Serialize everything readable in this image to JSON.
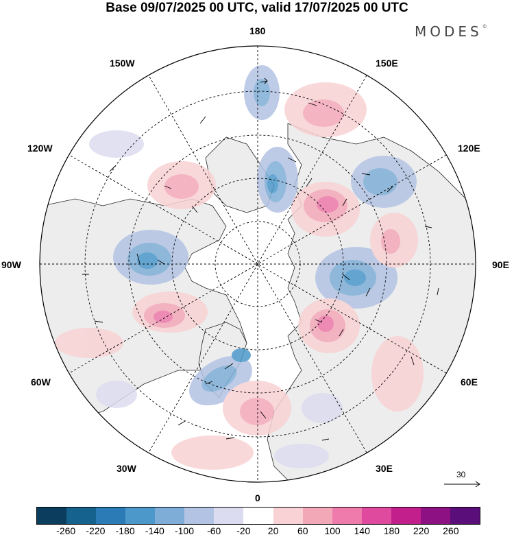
{
  "title": "Base 09/07/2025 00 UTC, valid 17/07/2025 00 UTC",
  "brand": "MODES",
  "brand_mark": "©",
  "longitude_labels": [
    "180",
    "150E",
    "120E",
    "90E",
    "60E",
    "30E",
    "0",
    "30W",
    "60W",
    "90W",
    "120W",
    "150W"
  ],
  "reference_vector": {
    "label": "30"
  },
  "colorbar": {
    "ticks": [
      "-260",
      "-220",
      "-180",
      "-140",
      "-100",
      "-60",
      "-20",
      "20",
      "60",
      "100",
      "140",
      "180",
      "220",
      "260"
    ],
    "colors": [
      "#0b3d5e",
      "#16628f",
      "#2b7bb6",
      "#4c98cb",
      "#7eaed7",
      "#b3c3e3",
      "#dcdcf0",
      "#ffffff",
      "#f8d2d4",
      "#f3a8b8",
      "#ee7bac",
      "#e04a9e",
      "#c21e8c",
      "#8e1184",
      "#5a0e7a"
    ]
  },
  "colors": {
    "land_fill": "#ededed",
    "coast": "#222222",
    "grid": "#000000"
  }
}
